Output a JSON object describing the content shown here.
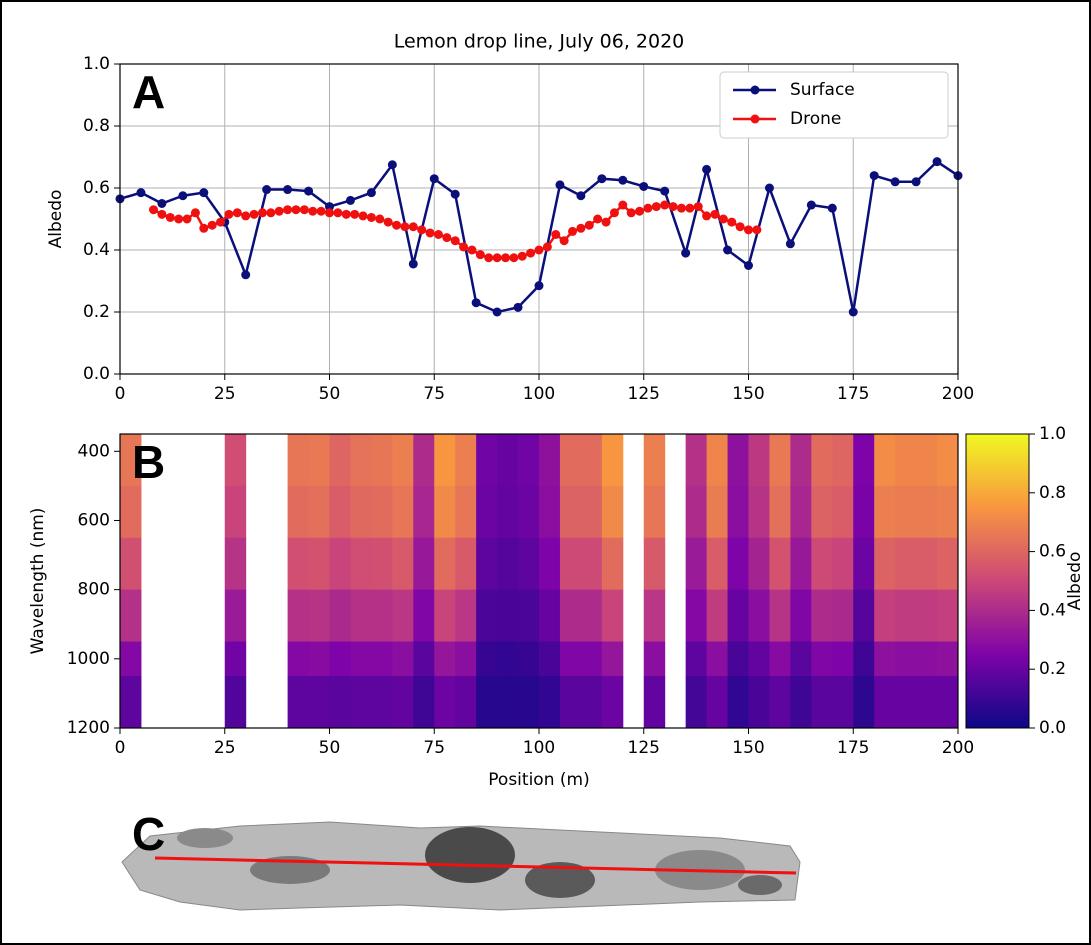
{
  "chart_data": [
    {
      "type": "line",
      "panel_label": "A",
      "title": "Lemon drop line, July 06, 2020",
      "ylabel": "Albedo",
      "xlim": [
        0,
        200
      ],
      "xticks": [
        0,
        25,
        50,
        75,
        100,
        125,
        150,
        175,
        200
      ],
      "ylim": [
        0,
        1
      ],
      "yticks": [
        {
          "value": 0,
          "label": "0.0"
        },
        0.2,
        0.4,
        0.6,
        0.8,
        {
          "value": 1,
          "label": "1.0"
        }
      ],
      "grid": true,
      "legend": "upper right",
      "series": [
        {
          "name": "Surface",
          "color": "#0b0f7a",
          "x": [
            0,
            5,
            10,
            15,
            20,
            25,
            30,
            35,
            40,
            45,
            50,
            55,
            60,
            65,
            70,
            75,
            80,
            85,
            90,
            95,
            100,
            105,
            110,
            115,
            120,
            125,
            130,
            135,
            140,
            145,
            150,
            155,
            160,
            165,
            170,
            175,
            180,
            185,
            190,
            195,
            200
          ],
          "values": [
            0.565,
            0.585,
            0.55,
            0.575,
            0.585,
            0.49,
            0.32,
            0.595,
            0.595,
            0.59,
            0.54,
            0.56,
            0.585,
            0.675,
            0.355,
            0.63,
            0.58,
            0.23,
            0.2,
            0.215,
            0.285,
            0.61,
            0.575,
            0.63,
            0.625,
            0.605,
            0.59,
            0.39,
            0.66,
            0.4,
            0.35,
            0.6,
            0.42,
            0.545,
            0.535,
            0.2,
            0.64,
            0.62,
            0.62,
            0.685,
            0.64
          ]
        },
        {
          "name": "Drone",
          "color": "#f01010",
          "x": [
            8,
            10,
            12,
            14,
            16,
            18,
            20,
            22,
            24,
            26,
            28,
            30,
            32,
            34,
            36,
            38,
            40,
            42,
            44,
            46,
            48,
            50,
            52,
            54,
            56,
            58,
            60,
            62,
            64,
            66,
            68,
            70,
            72,
            74,
            76,
            78,
            80,
            82,
            84,
            86,
            88,
            90,
            92,
            94,
            96,
            98,
            100,
            102,
            104,
            106,
            108,
            110,
            112,
            114,
            116,
            118,
            120,
            122,
            124,
            126,
            128,
            130,
            132,
            134,
            136,
            138,
            140,
            142,
            144,
            146,
            148,
            150,
            152
          ],
          "values": [
            0.53,
            0.515,
            0.505,
            0.5,
            0.5,
            0.52,
            0.47,
            0.48,
            0.49,
            0.515,
            0.52,
            0.51,
            0.515,
            0.52,
            0.52,
            0.525,
            0.53,
            0.53,
            0.53,
            0.525,
            0.525,
            0.52,
            0.52,
            0.515,
            0.515,
            0.51,
            0.505,
            0.5,
            0.49,
            0.48,
            0.475,
            0.475,
            0.465,
            0.455,
            0.45,
            0.44,
            0.43,
            0.41,
            0.4,
            0.385,
            0.375,
            0.375,
            0.375,
            0.375,
            0.38,
            0.39,
            0.4,
            0.41,
            0.45,
            0.43,
            0.46,
            0.47,
            0.48,
            0.5,
            0.49,
            0.52,
            0.545,
            0.52,
            0.525,
            0.535,
            0.54,
            0.545,
            0.54,
            0.535,
            0.535,
            0.54,
            0.51,
            0.515,
            0.5,
            0.49,
            0.475,
            0.465,
            0.465
          ]
        }
      ]
    },
    {
      "type": "heatmap",
      "panel_label": "B",
      "xlabel": "Position (m)",
      "ylabel": "Wavelength (nm)",
      "xlim": [
        0,
        200
      ],
      "xticks": [
        0,
        25,
        50,
        75,
        100,
        125,
        150,
        175,
        200
      ],
      "ylim": [
        1200,
        350
      ],
      "yticks": [
        400,
        600,
        800,
        1000,
        1200
      ],
      "x_edges": [
        0,
        5,
        10,
        15,
        20,
        25,
        30,
        35,
        40,
        45,
        50,
        55,
        60,
        65,
        70,
        75,
        80,
        85,
        90,
        95,
        100,
        105,
        110,
        115,
        120,
        125,
        130,
        135,
        140,
        145,
        150,
        155,
        160,
        165,
        170,
        175,
        180,
        185,
        190,
        195,
        200
      ],
      "y_edges": [
        350,
        500,
        650,
        800,
        950,
        1050,
        1200
      ],
      "colormap": [
        "#0d0887",
        "#7e03a8",
        "#cc4778",
        "#f89540",
        "#f0f921"
      ],
      "colorbar_label": "Albedo",
      "zlim": [
        0,
        1
      ],
      "zticks": [
        {
          "value": 0,
          "label": "0.0"
        },
        0.2,
        0.4,
        0.6,
        0.8,
        {
          "value": 1,
          "label": "1.0"
        }
      ],
      "z": [
        [
          0.65,
          0.62,
          0.53,
          0.42,
          0.27,
          0.18
        ],
        null,
        null,
        null,
        null,
        [
          0.52,
          0.49,
          0.43,
          0.34,
          0.22,
          0.15
        ],
        null,
        null,
        [
          0.65,
          0.62,
          0.53,
          0.42,
          0.27,
          0.18
        ],
        [
          0.66,
          0.63,
          0.54,
          0.43,
          0.28,
          0.18
        ],
        [
          0.6,
          0.57,
          0.49,
          0.39,
          0.25,
          0.17
        ],
        [
          0.64,
          0.61,
          0.52,
          0.42,
          0.27,
          0.18
        ],
        [
          0.65,
          0.62,
          0.53,
          0.42,
          0.27,
          0.18
        ],
        [
          0.68,
          0.65,
          0.56,
          0.44,
          0.29,
          0.19
        ],
        [
          0.4,
          0.38,
          0.33,
          0.26,
          0.17,
          0.11
        ],
        [
          0.75,
          0.71,
          0.62,
          0.49,
          0.32,
          0.21
        ],
        [
          0.68,
          0.65,
          0.56,
          0.44,
          0.29,
          0.19
        ],
        [
          0.22,
          0.21,
          0.18,
          0.14,
          0.09,
          0.06
        ],
        [
          0.2,
          0.19,
          0.16,
          0.13,
          0.08,
          0.06
        ],
        [
          0.22,
          0.21,
          0.18,
          0.14,
          0.09,
          0.06
        ],
        [
          0.3,
          0.29,
          0.25,
          0.2,
          0.13,
          0.08
        ],
        [
          0.62,
          0.59,
          0.51,
          0.4,
          0.26,
          0.17
        ],
        [
          0.62,
          0.59,
          0.51,
          0.4,
          0.26,
          0.17
        ],
        [
          0.75,
          0.71,
          0.62,
          0.49,
          0.32,
          0.21
        ],
        null,
        [
          0.68,
          0.65,
          0.56,
          0.44,
          0.29,
          0.19
        ],
        null,
        [
          0.42,
          0.4,
          0.34,
          0.27,
          0.18,
          0.12
        ],
        [
          0.7,
          0.67,
          0.57,
          0.46,
          0.29,
          0.2
        ],
        [
          0.3,
          0.29,
          0.25,
          0.2,
          0.13,
          0.08
        ],
        [
          0.45,
          0.43,
          0.37,
          0.29,
          0.19,
          0.13
        ],
        [
          0.66,
          0.63,
          0.54,
          0.43,
          0.28,
          0.18
        ],
        [
          0.4,
          0.38,
          0.33,
          0.26,
          0.17,
          0.11
        ],
        [
          0.62,
          0.59,
          0.51,
          0.4,
          0.26,
          0.17
        ],
        [
          0.6,
          0.57,
          0.49,
          0.39,
          0.25,
          0.17
        ],
        [
          0.25,
          0.24,
          0.21,
          0.16,
          0.11,
          0.07
        ],
        [
          0.72,
          0.68,
          0.59,
          0.47,
          0.3,
          0.2
        ],
        [
          0.7,
          0.67,
          0.57,
          0.46,
          0.29,
          0.2
        ],
        [
          0.7,
          0.67,
          0.57,
          0.46,
          0.29,
          0.2
        ],
        [
          0.72,
          0.68,
          0.59,
          0.47,
          0.3,
          0.2
        ]
      ]
    }
  ],
  "photo": {
    "label": "C"
  }
}
